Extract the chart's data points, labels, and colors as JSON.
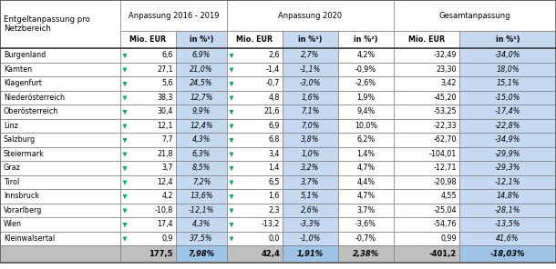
{
  "col_header_row1_labels": [
    "Entgeltanpassung pro\nNetzbereich",
    "Anpassung 2016 - 2019",
    "Anpassung 2020",
    "Gesamtanpassung"
  ],
  "col_header_row2_labels": [
    "Mio. EUR",
    "in %¹)",
    "Mio. EUR",
    "in %¹)",
    "in %²)",
    "Mio. EUR",
    "in %¹)"
  ],
  "rows": [
    [
      "Burgenland",
      "6,6",
      "6,9%",
      "2,6",
      "2,7%",
      "4,2%",
      "-32,49",
      "-34,0%"
    ],
    [
      "Kämten",
      "27,1",
      "21,0%",
      "-1,4",
      "-1,1%",
      "-0,9%",
      "23,30",
      "18,0%"
    ],
    [
      "Klagenfurt",
      "5,6",
      "24,5%",
      "-0,7",
      "-3,0%",
      "-2,6%",
      "3,42",
      "15,1%"
    ],
    [
      "Niederösterreich",
      "38,3",
      "12,7%",
      "4,8",
      "1,6%",
      "1,9%",
      "-45,20",
      "-15,0%"
    ],
    [
      "Oberösterreich",
      "30,4",
      "9,9%",
      "21,6",
      "7,1%",
      "9,4%",
      "-53,25",
      "-17,4%"
    ],
    [
      "Linz",
      "12,1",
      "12,4%",
      "6,9",
      "7,0%",
      "10,0%",
      "-22,33",
      "-22,8%"
    ],
    [
      "Salzburg",
      "7,7",
      "4,3%",
      "6,8",
      "3,8%",
      "6,2%",
      "-62,70",
      "-34,9%"
    ],
    [
      "Steiermark",
      "21,8",
      "6,3%",
      "3,4",
      "1,0%",
      "1,4%",
      "-104,01",
      "-29,9%"
    ],
    [
      "Graz",
      "3,7",
      "8,5%",
      "1,4",
      "3,2%",
      "4,7%",
      "-12,71",
      "-29,3%"
    ],
    [
      "Tirol",
      "12,4",
      "7,2%",
      "6,5",
      "3,7%",
      "4,4%",
      "-20,98",
      "-12,1%"
    ],
    [
      "Innsbruck",
      "4,2",
      "13,6%",
      "1,6",
      "5,1%",
      "4,7%",
      "4,55",
      "14,8%"
    ],
    [
      "Vorarlberg",
      "-10,8",
      "-12,1%",
      "2,3",
      "2,6%",
      "3,7%",
      "-25,04",
      "-28,1%"
    ],
    [
      "Wien",
      "17,4",
      "4,3%",
      "-13,2",
      "-3,3%",
      "-3,6%",
      "-54,76",
      "-13,5%"
    ],
    [
      "Kleinwalsertal",
      "0,9",
      "37,5%",
      "0,0",
      "-1,0%",
      "-0,7%",
      "0,99",
      "41,6%"
    ]
  ],
  "total_row": [
    "",
    "177,5",
    "7,98%",
    "42,4",
    "1,91%",
    "2,38%",
    "-401,2",
    "-18,03%"
  ],
  "bg_white": "#ffffff",
  "bg_blue": "#c5d9f1",
  "bg_total_gray": "#bfbfbf",
  "bg_total_blue": "#9dc3e6",
  "border_color": "#7f7f7f",
  "text_color": "#000000",
  "green_color": "#00b050"
}
